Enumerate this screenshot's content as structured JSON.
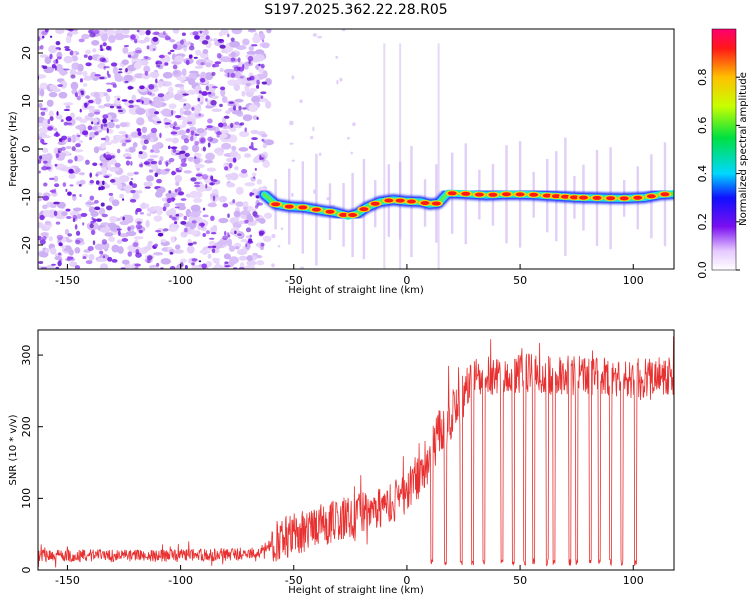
{
  "page": {
    "title": "S197.2025.362.22.28.R05"
  },
  "chart_data": [
    {
      "type": "heatmap",
      "title": "S197.2025.362.22.28.R05",
      "xlabel": "Height of straight line (km)",
      "ylabel": "Frequency (Hz)",
      "xlim": [
        -163,
        118
      ],
      "ylim": [
        -25,
        25
      ],
      "x_ticks": [
        -150,
        -100,
        -50,
        0,
        50,
        100
      ],
      "y_ticks": [
        -20,
        -10,
        0,
        10,
        20
      ],
      "colorbar": {
        "label": "Normalized spectral amplitude",
        "range": [
          0,
          1
        ],
        "ticks": [
          "0.0",
          "0.2",
          "0.4",
          "0.6",
          "0.8"
        ],
        "tick_values": [
          0,
          0.2,
          0.4,
          0.6,
          0.8
        ]
      },
      "noise_region_x": [
        -163,
        -63
      ],
      "signal_track": {
        "x": [
          -63,
          -58,
          -52,
          -45,
          -38,
          -32,
          -26,
          -22,
          -18,
          -12,
          -6,
          0,
          6,
          10,
          14,
          18,
          25,
          35,
          45,
          55,
          65,
          75,
          85,
          95,
          105,
          112,
          118
        ],
        "y": [
          -9.5,
          -11.5,
          -12,
          -12.2,
          -12.8,
          -13.2,
          -14,
          -13.5,
          -12.2,
          -11,
          -10.6,
          -10.9,
          -11,
          -11.5,
          -11.3,
          -9.2,
          -9.3,
          -9.6,
          -9.4,
          -9.5,
          -9.8,
          -10.1,
          -10.2,
          -10.3,
          -10.1,
          -9.5,
          -9.3
        ]
      },
      "peaks_x": [
        -58,
        -52,
        -46,
        -40,
        -34,
        -28,
        -24,
        -19,
        -14,
        -8,
        -3,
        2,
        8,
        13,
        20,
        26,
        32,
        38,
        44,
        50,
        56,
        62,
        66,
        70,
        74,
        78,
        84,
        90,
        96,
        102,
        108,
        114
      ]
    },
    {
      "type": "line",
      "xlabel": "Height of straight line (km)",
      "ylabel": "SNR (10 * v/v)",
      "xlim": [
        -163,
        118
      ],
      "ylim": [
        0,
        335
      ],
      "x_ticks": [
        -150,
        -100,
        -50,
        0,
        50,
        100
      ],
      "y_ticks": [
        0,
        100,
        200,
        300
      ],
      "series": [
        {
          "name": "SNR",
          "color": "#ea2f2f",
          "envelope_x": [
            -163,
            -140,
            -120,
            -100,
            -80,
            -65,
            -58,
            -50,
            -40,
            -30,
            -20,
            -10,
            0,
            5,
            10,
            15,
            20,
            25,
            30,
            35,
            40,
            50,
            60,
            70,
            80,
            90,
            100,
            110,
            118
          ],
          "envelope_y": [
            20,
            20,
            20,
            20,
            21,
            24,
            40,
            50,
            60,
            70,
            80,
            90,
            105,
            130,
            160,
            195,
            215,
            245,
            275,
            270,
            270,
            275,
            272,
            272,
            270,
            268,
            262,
            272,
            270
          ],
          "dropout_x": [
            11,
            17,
            24,
            29,
            34,
            42,
            47,
            52,
            56,
            62,
            65,
            72,
            75,
            81,
            85,
            90,
            95,
            101
          ]
        }
      ]
    }
  ],
  "colors": {
    "noise_dark": "#6a10e0",
    "noise_light": "#c8a8f2",
    "track_edge": "#25e0d2",
    "track_core": "#7fff00",
    "peak": "#ff1a1a"
  }
}
